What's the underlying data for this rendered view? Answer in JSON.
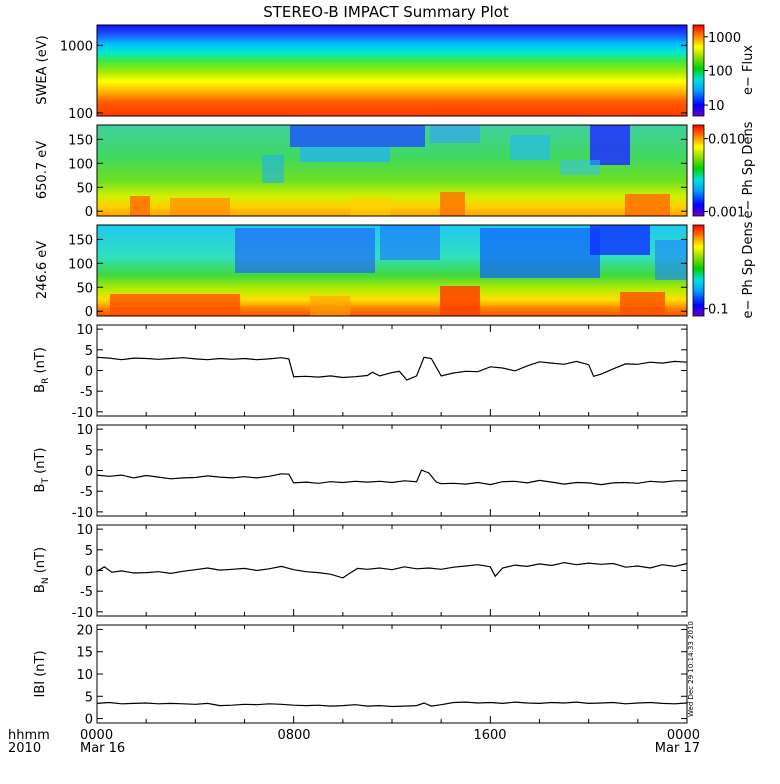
{
  "title": "STEREO-B IMPACT Summary Plot",
  "time_axis": {
    "row1": [
      "0000",
      "0800",
      "1600",
      "0000"
    ],
    "row2_left": [
      "Mar 16",
      "",
      "",
      "Mar 17"
    ],
    "corner_top": "hhmm",
    "corner_bottom": "2010"
  },
  "side_stamp": "Wed Dec 29 10:14:33 2010",
  "chart_data": [
    {
      "type": "heatmap",
      "id": "swea",
      "ylabel": "SWEA (eV)",
      "yscale": "log",
      "ylim": [
        90,
        2000
      ],
      "yticks": [
        {
          "v": 100,
          "t": "100"
        },
        {
          "v": 1000,
          "t": "1000"
        }
      ],
      "colorbar_label": "e− Flux",
      "colorbar_ticks": [
        {
          "f": 0.87,
          "t": "1000"
        },
        {
          "f": 0.5,
          "t": "100"
        },
        {
          "f": 0.12,
          "t": "10"
        }
      ]
    },
    {
      "type": "heatmap",
      "id": "pad650",
      "ylabel": "650.7 eV",
      "ylim": [
        -10,
        180
      ],
      "yticks": [
        {
          "v": 0,
          "t": "0"
        },
        {
          "v": 50,
          "t": "50"
        },
        {
          "v": 100,
          "t": "100"
        },
        {
          "v": 150,
          "t": "150"
        }
      ],
      "colorbar_label": "e− Ph Sp Dens",
      "colorbar_ticks": [
        {
          "f": 0.85,
          "t": "0.010"
        },
        {
          "f": 0.05,
          "t": "0.001"
        }
      ]
    },
    {
      "type": "heatmap",
      "id": "pad246",
      "ylabel": "246.6 eV",
      "ylim": [
        -10,
        180
      ],
      "yticks": [
        {
          "v": 0,
          "t": "0"
        },
        {
          "v": 50,
          "t": "50"
        },
        {
          "v": 100,
          "t": "100"
        },
        {
          "v": 150,
          "t": "150"
        }
      ],
      "colorbar_label": "e− Ph Sp Dens",
      "colorbar_ticks": [
        {
          "f": 0.08,
          "t": "0.1"
        }
      ]
    },
    {
      "type": "line",
      "id": "br",
      "ylabel": "B",
      "ylabel_sub": "R",
      "ylabel_unit": " (nT)",
      "ylim": [
        -11,
        11
      ],
      "yticks": [
        -10,
        -5,
        0,
        5,
        10
      ],
      "x": [
        0,
        0.5,
        1,
        1.5,
        2,
        2.5,
        3,
        3.5,
        4,
        4.5,
        5,
        5.5,
        6,
        6.5,
        7,
        7.5,
        7.8,
        8,
        8.5,
        9,
        9.5,
        10,
        10.5,
        11,
        11.2,
        11.5,
        12,
        12.3,
        12.6,
        13,
        13.3,
        13.6,
        14,
        14.5,
        15,
        15.5,
        16,
        16.5,
        17,
        17.5,
        18,
        18.5,
        19,
        19.5,
        20,
        20.2,
        20.5,
        21,
        21.5,
        22,
        22.5,
        23,
        23.5,
        24
      ],
      "y": [
        3.2,
        3.0,
        2.6,
        3.0,
        2.9,
        2.7,
        2.9,
        3.1,
        2.8,
        2.6,
        2.9,
        2.7,
        2.9,
        2.6,
        2.8,
        3.1,
        2.8,
        -1.5,
        -1.4,
        -1.6,
        -1.3,
        -1.7,
        -1.5,
        -1.2,
        -0.4,
        -1.3,
        -0.5,
        -0.2,
        -2.3,
        -1.3,
        3.2,
        2.9,
        -1.3,
        -0.6,
        -0.2,
        -0.3,
        0.9,
        0.6,
        -0.1,
        1.1,
        2.1,
        1.8,
        1.5,
        2.2,
        1.4,
        -1.4,
        -0.9,
        0.4,
        1.6,
        1.5,
        2.0,
        1.8,
        2.2,
        2.0
      ]
    },
    {
      "type": "line",
      "id": "bt",
      "ylabel": "B",
      "ylabel_sub": "T",
      "ylabel_unit": " (nT)",
      "ylim": [
        -11,
        11
      ],
      "yticks": [
        -10,
        -5,
        0,
        5,
        10
      ],
      "x": [
        0,
        0.5,
        1,
        1.5,
        2,
        2.5,
        3,
        3.5,
        4,
        4.5,
        5,
        5.5,
        6,
        6.5,
        7,
        7.5,
        7.8,
        8,
        8.5,
        9,
        9.5,
        10,
        10.5,
        11,
        11.5,
        12,
        12.5,
        13,
        13.2,
        13.5,
        13.8,
        14,
        14.5,
        15,
        15.5,
        16,
        16.5,
        17,
        17.5,
        18,
        18.5,
        19,
        19.5,
        20,
        20.5,
        21,
        21.5,
        22,
        22.5,
        23,
        23.5,
        24
      ],
      "y": [
        -1.1,
        -1.4,
        -1.1,
        -1.8,
        -1.2,
        -1.6,
        -2.0,
        -1.8,
        -1.7,
        -1.3,
        -1.6,
        -1.8,
        -1.5,
        -1.8,
        -1.4,
        -0.8,
        -0.9,
        -3.0,
        -2.8,
        -3.1,
        -2.7,
        -2.9,
        -2.6,
        -2.8,
        -2.6,
        -2.9,
        -2.5,
        -2.7,
        0.1,
        -0.6,
        -2.8,
        -3.2,
        -3.1,
        -3.3,
        -2.9,
        -3.4,
        -2.7,
        -2.6,
        -3.0,
        -2.4,
        -2.8,
        -3.3,
        -2.9,
        -3.0,
        -3.4,
        -3.0,
        -2.9,
        -3.1,
        -2.6,
        -2.8,
        -2.5,
        -2.5
      ]
    },
    {
      "type": "line",
      "id": "bn",
      "ylabel": "B",
      "ylabel_sub": "N",
      "ylabel_unit": " (nT)",
      "ylim": [
        -11,
        11
      ],
      "yticks": [
        -10,
        -5,
        0,
        5,
        10
      ],
      "x": [
        0,
        0.3,
        0.6,
        1,
        1.5,
        2,
        2.5,
        3,
        3.5,
        4,
        4.5,
        5,
        5.5,
        6,
        6.5,
        7,
        7.5,
        8,
        8.5,
        9,
        9.5,
        10,
        10.3,
        10.6,
        11,
        11.5,
        12,
        12.5,
        13,
        13.5,
        14,
        14.5,
        15,
        15.5,
        16,
        16.2,
        16.5,
        17,
        17.5,
        18,
        18.5,
        19,
        19.5,
        20,
        20.5,
        21,
        21.5,
        22,
        22.5,
        23,
        23.5,
        24
      ],
      "y": [
        -0.2,
        0.9,
        -0.4,
        -0.1,
        -0.6,
        -0.5,
        -0.3,
        -0.7,
        -0.2,
        0.2,
        0.6,
        0.1,
        0.3,
        0.5,
        0.0,
        0.4,
        1.0,
        0.2,
        -0.3,
        -0.5,
        -0.9,
        -1.8,
        -0.6,
        0.5,
        0.3,
        0.6,
        0.2,
        0.9,
        0.4,
        0.6,
        0.3,
        0.8,
        1.1,
        1.4,
        0.9,
        -1.4,
        0.6,
        1.3,
        1.0,
        1.6,
        1.2,
        1.9,
        1.4,
        1.8,
        1.5,
        1.7,
        0.8,
        1.1,
        0.6,
        1.4,
        1.0,
        1.7
      ]
    },
    {
      "type": "line",
      "id": "bmag",
      "ylabel": "IBI (nT)",
      "ylim": [
        -1,
        21
      ],
      "yticks": [
        0,
        5,
        10,
        15,
        20
      ],
      "x": [
        0,
        0.5,
        1,
        1.5,
        2,
        2.5,
        3,
        3.5,
        4,
        4.5,
        5,
        5.5,
        6,
        6.5,
        7,
        7.5,
        8,
        8.5,
        9,
        9.5,
        10,
        10.5,
        11,
        11.5,
        12,
        12.5,
        13,
        13.3,
        13.6,
        14,
        14.5,
        15,
        15.5,
        16,
        16.5,
        17,
        17.5,
        18,
        18.5,
        19,
        19.5,
        20,
        20.5,
        21,
        21.5,
        22,
        22.5,
        23,
        23.5,
        24
      ],
      "y": [
        3.4,
        3.6,
        3.3,
        3.4,
        3.5,
        3.3,
        3.4,
        3.3,
        3.2,
        3.4,
        2.9,
        3.0,
        3.2,
        3.1,
        3.3,
        3.2,
        3.0,
        2.9,
        3.0,
        2.8,
        2.9,
        3.1,
        2.8,
        2.9,
        2.7,
        2.8,
        2.9,
        3.5,
        2.8,
        3.1,
        3.6,
        3.7,
        3.5,
        3.6,
        3.4,
        3.7,
        3.5,
        3.4,
        3.6,
        3.5,
        3.7,
        3.4,
        3.5,
        3.6,
        3.3,
        3.5,
        3.6,
        3.4,
        3.3,
        3.5
      ]
    }
  ]
}
